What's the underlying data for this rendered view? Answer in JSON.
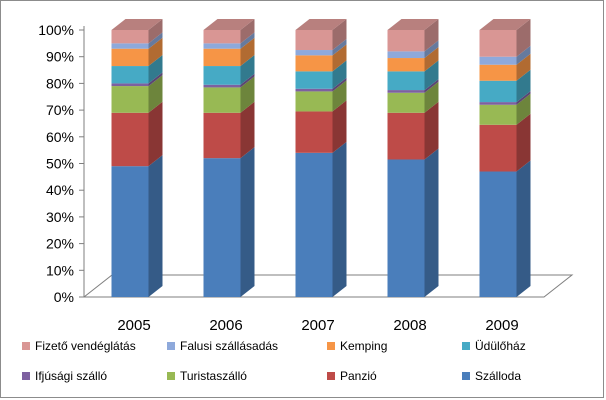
{
  "chart_data": {
    "type": "bar",
    "stacked": true,
    "percent": true,
    "style": "3d",
    "categories": [
      "2005",
      "2006",
      "2007",
      "2008",
      "2009"
    ],
    "ylim": [
      0,
      100
    ],
    "yticks": [
      "0%",
      "10%",
      "20%",
      "30%",
      "40%",
      "50%",
      "60%",
      "70%",
      "80%",
      "90%",
      "100%"
    ],
    "grid": false,
    "legend_position": "bottom",
    "series": [
      {
        "name": "Szálloda",
        "color": "#4a7ebb",
        "values": [
          49,
          52,
          54,
          51.5,
          47
        ]
      },
      {
        "name": "Panzió",
        "color": "#be4b48",
        "values": [
          20,
          17,
          15.5,
          17.5,
          17.5
        ]
      },
      {
        "name": "Turistaszálló",
        "color": "#98b954",
        "values": [
          10,
          9.5,
          7.5,
          7.5,
          7.5
        ]
      },
      {
        "name": "Ifjúsági szálló",
        "color": "#7d60a0",
        "values": [
          1,
          1,
          1,
          1,
          1
        ]
      },
      {
        "name": "Üdülőház",
        "color": "#46aac5",
        "values": [
          6.5,
          7,
          6.5,
          7,
          8
        ]
      },
      {
        "name": "Kemping",
        "color": "#f69546",
        "values": [
          6.5,
          6.5,
          6,
          5,
          6
        ]
      },
      {
        "name": "Falusi szállásadás",
        "color": "#8ea9db",
        "values": [
          2,
          2,
          2,
          2.5,
          3
        ]
      },
      {
        "name": "Fizető vendéglátás",
        "color": "#d99694",
        "values": [
          5,
          5,
          7.5,
          8,
          10
        ]
      }
    ]
  },
  "legend": {
    "items": [
      {
        "label": "Fizető vendéglátás",
        "color": "#d99694"
      },
      {
        "label": "Falusi szállásadás",
        "color": "#8ea9db"
      },
      {
        "label": "Kemping",
        "color": "#f69546"
      },
      {
        "label": "Üdülőház",
        "color": "#46aac5"
      },
      {
        "label": "Ifjúsági szálló",
        "color": "#7d60a0"
      },
      {
        "label": "Turistaszálló",
        "color": "#98b954"
      },
      {
        "label": "Panzió",
        "color": "#be4b48"
      },
      {
        "label": "Szálloda",
        "color": "#4a7ebb"
      }
    ]
  }
}
